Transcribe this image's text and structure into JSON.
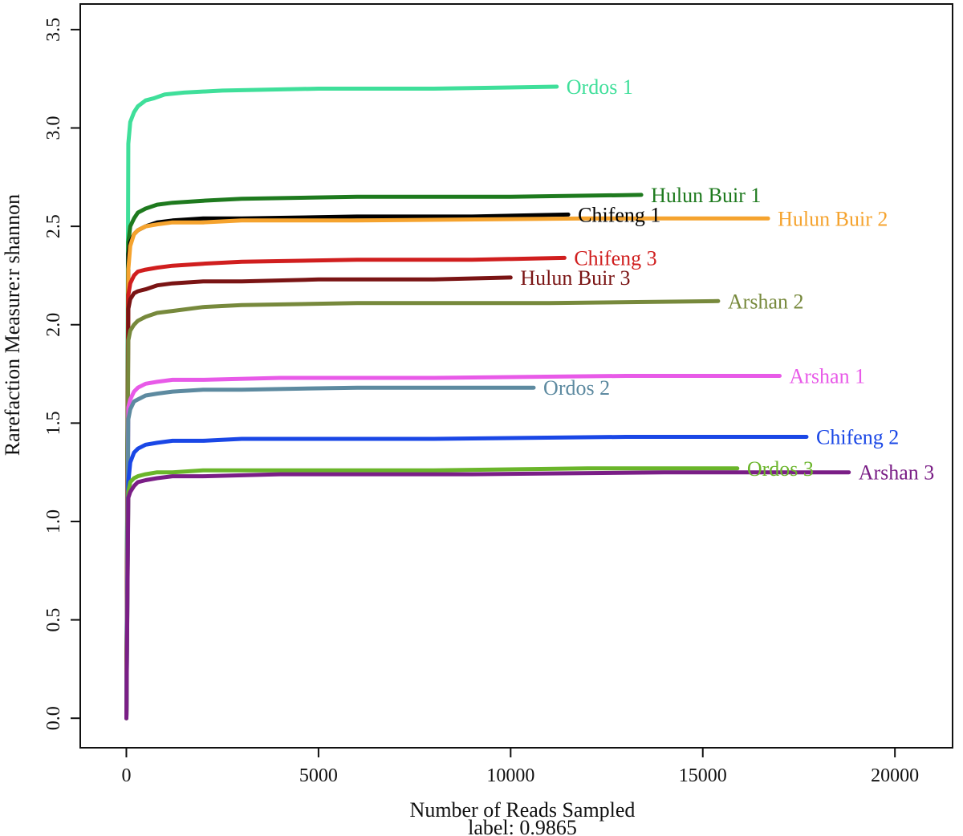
{
  "chart_data": {
    "type": "line",
    "title": "",
    "xlabel": "Number of Reads Sampled",
    "subtitle": "label: 0.9865",
    "ylabel": "Rarefaction Measure:r shannon",
    "xlim": [
      -1200,
      21500
    ],
    "ylim": [
      -0.15,
      3.63
    ],
    "xticks": [
      0,
      5000,
      10000,
      15000,
      20000
    ],
    "yticks": [
      0.0,
      0.5,
      1.0,
      1.5,
      2.0,
      2.5,
      3.0,
      3.5
    ],
    "xtick_labels": [
      "0",
      "5000",
      "10000",
      "15000",
      "20000"
    ],
    "ytick_labels": [
      "0.0",
      "0.5",
      "1.0",
      "1.5",
      "2.0",
      "2.5",
      "3.0",
      "3.5"
    ],
    "grid": false,
    "legend": "none (labels at line ends)",
    "series": [
      {
        "name": "Ordos 1",
        "color": "#3fdf9a",
        "x": [
          0,
          50,
          100,
          200,
          300,
          500,
          700,
          1000,
          1500,
          2500,
          5000,
          8000,
          11200
        ],
        "y": [
          0,
          2.92,
          3.03,
          3.08,
          3.11,
          3.14,
          3.15,
          3.17,
          3.18,
          3.19,
          3.2,
          3.2,
          3.21
        ]
      },
      {
        "name": "Hulun Buir 1",
        "color": "#1e7a1e",
        "x": [
          0,
          50,
          100,
          200,
          300,
          500,
          800,
          1200,
          2000,
          3000,
          6000,
          10000,
          13400
        ],
        "y": [
          0,
          2.42,
          2.5,
          2.54,
          2.57,
          2.59,
          2.61,
          2.62,
          2.63,
          2.64,
          2.65,
          2.65,
          2.66
        ]
      },
      {
        "name": "Chifeng 1",
        "color": "#000000",
        "x": [
          0,
          50,
          100,
          200,
          300,
          500,
          800,
          1200,
          2000,
          3000,
          6000,
          9000,
          11500
        ],
        "y": [
          0,
          2.36,
          2.42,
          2.46,
          2.48,
          2.5,
          2.52,
          2.53,
          2.54,
          2.54,
          2.55,
          2.55,
          2.56
        ]
      },
      {
        "name": "Hulun Buir 2",
        "color": "#f5a32e",
        "x": [
          0,
          50,
          100,
          200,
          300,
          500,
          800,
          1200,
          2000,
          3000,
          6000,
          12000,
          16700
        ],
        "y": [
          0,
          2.28,
          2.4,
          2.46,
          2.48,
          2.5,
          2.51,
          2.52,
          2.52,
          2.53,
          2.53,
          2.54,
          2.54
        ]
      },
      {
        "name": "Chifeng 3",
        "color": "#d01e1e",
        "x": [
          0,
          50,
          100,
          200,
          300,
          500,
          800,
          1200,
          2000,
          3000,
          6000,
          9000,
          11400
        ],
        "y": [
          0,
          2.15,
          2.21,
          2.25,
          2.27,
          2.28,
          2.29,
          2.3,
          2.31,
          2.32,
          2.33,
          2.33,
          2.34
        ]
      },
      {
        "name": "Hulun Buir 3",
        "color": "#7a1414",
        "x": [
          0,
          50,
          100,
          200,
          300,
          500,
          800,
          1200,
          2000,
          3000,
          5000,
          8000,
          10000
        ],
        "y": [
          0,
          2.08,
          2.13,
          2.16,
          2.17,
          2.18,
          2.2,
          2.21,
          2.22,
          2.22,
          2.23,
          2.23,
          2.24
        ]
      },
      {
        "name": "Arshan 2",
        "color": "#77893c",
        "x": [
          0,
          50,
          100,
          200,
          300,
          500,
          800,
          1200,
          2000,
          3000,
          6000,
          11000,
          15400
        ],
        "y": [
          0,
          1.92,
          1.97,
          2.0,
          2.02,
          2.04,
          2.06,
          2.07,
          2.09,
          2.1,
          2.11,
          2.11,
          2.12
        ]
      },
      {
        "name": "Arshan 1",
        "color": "#e85ae8",
        "x": [
          0,
          50,
          100,
          200,
          300,
          500,
          800,
          1200,
          2000,
          4000,
          8000,
          13000,
          17000
        ],
        "y": [
          0,
          1.58,
          1.62,
          1.66,
          1.68,
          1.7,
          1.71,
          1.72,
          1.72,
          1.73,
          1.73,
          1.74,
          1.74
        ]
      },
      {
        "name": "Ordos 2",
        "color": "#5d8aa0",
        "x": [
          0,
          50,
          100,
          200,
          300,
          500,
          800,
          1200,
          2000,
          3000,
          6000,
          9000,
          10600
        ],
        "y": [
          0,
          1.52,
          1.57,
          1.61,
          1.62,
          1.64,
          1.65,
          1.66,
          1.67,
          1.67,
          1.68,
          1.68,
          1.68
        ]
      },
      {
        "name": "Chifeng 2",
        "color": "#1a47e6",
        "x": [
          0,
          50,
          100,
          200,
          300,
          500,
          800,
          1200,
          2000,
          3000,
          8000,
          13000,
          17700
        ],
        "y": [
          0,
          1.2,
          1.3,
          1.35,
          1.37,
          1.39,
          1.4,
          1.41,
          1.41,
          1.42,
          1.42,
          1.43,
          1.43
        ]
      },
      {
        "name": "Ordos 3",
        "color": "#6ab52a",
        "x": [
          0,
          50,
          100,
          200,
          300,
          500,
          800,
          1200,
          2000,
          3000,
          8000,
          12000,
          15900
        ],
        "y": [
          0,
          1.15,
          1.2,
          1.22,
          1.23,
          1.24,
          1.25,
          1.25,
          1.26,
          1.26,
          1.26,
          1.27,
          1.27
        ]
      },
      {
        "name": "Arshan 3",
        "color": "#7a1e86",
        "x": [
          0,
          50,
          100,
          200,
          300,
          500,
          800,
          1200,
          2000,
          4000,
          9000,
          14000,
          18800
        ],
        "y": [
          0,
          1.12,
          1.15,
          1.18,
          1.2,
          1.21,
          1.22,
          1.23,
          1.23,
          1.24,
          1.24,
          1.25,
          1.25
        ]
      }
    ]
  }
}
